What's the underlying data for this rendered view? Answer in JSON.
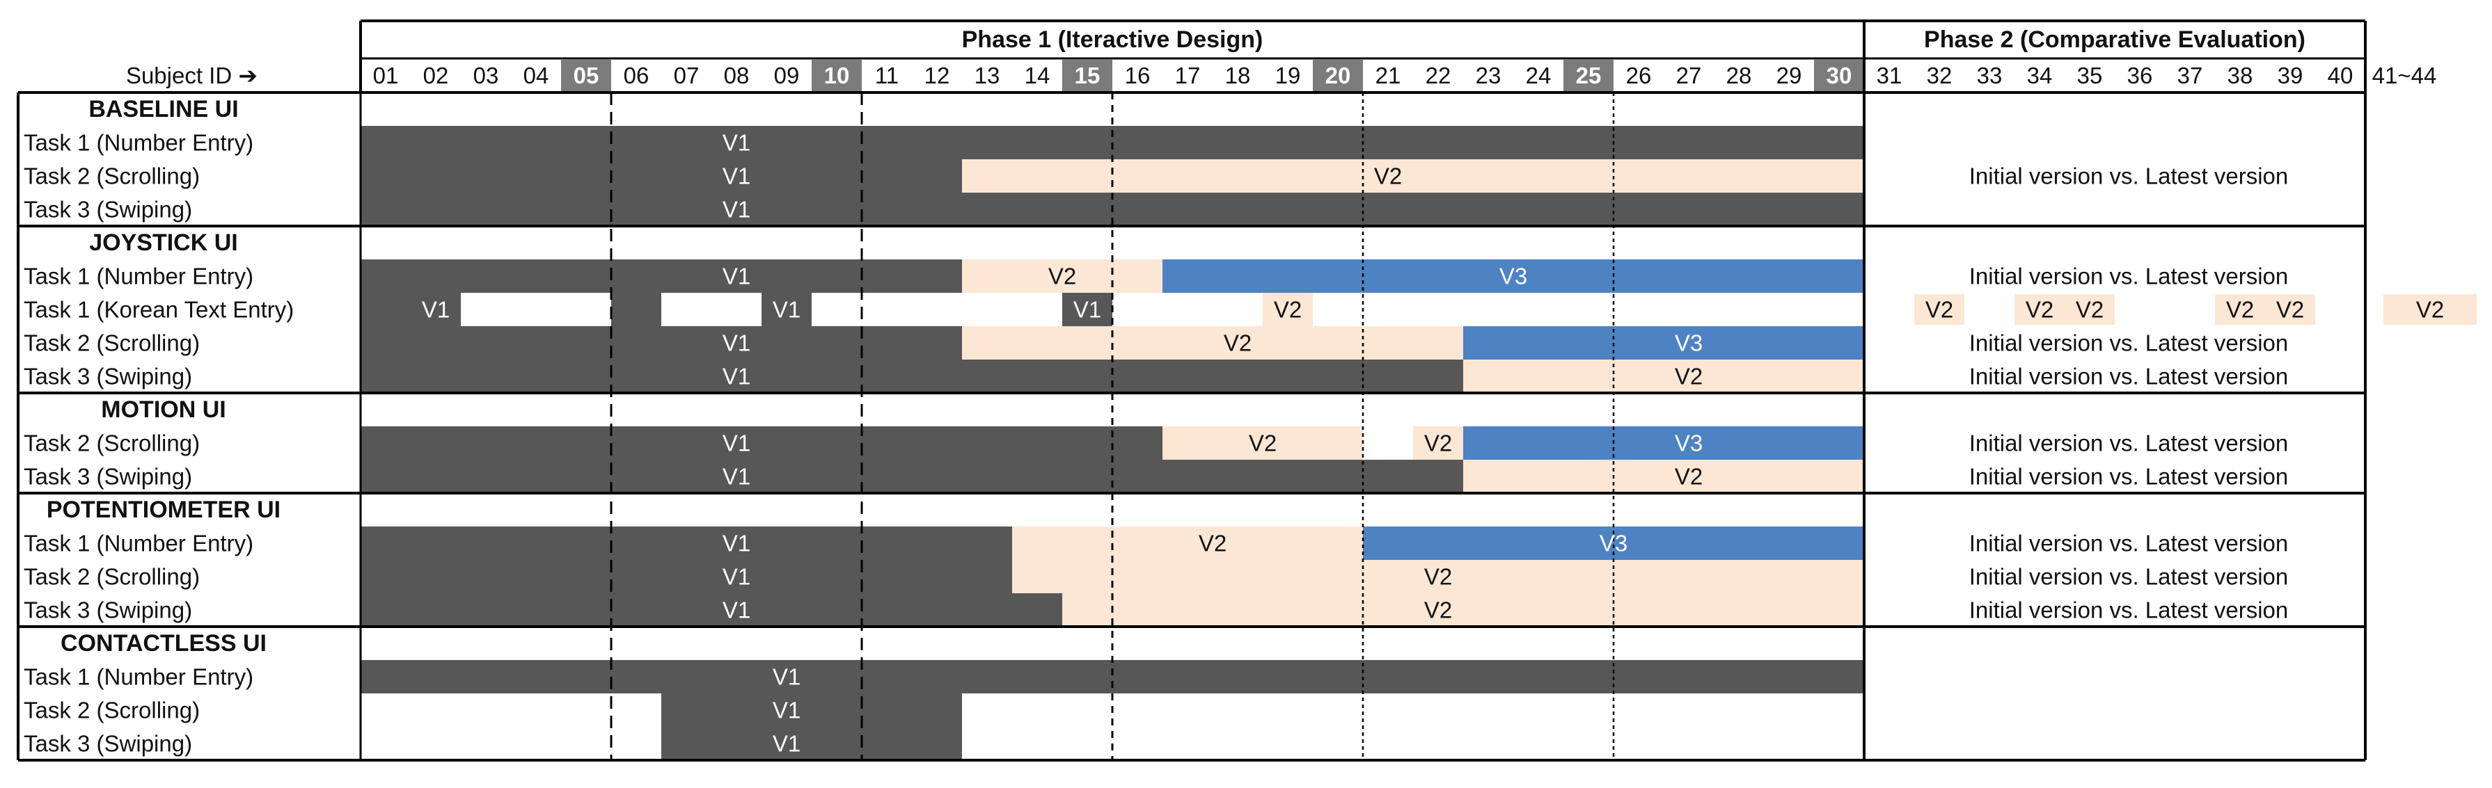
{
  "header": {
    "subject_id_label": "Subject ID ➔",
    "phase1_title": "Phase 1 (Iteractive Design)",
    "phase2_title": "Phase 2 (Comparative Evaluation)",
    "extra_column_label": "41~44",
    "subject_ids": [
      "01",
      "02",
      "03",
      "04",
      "05",
      "06",
      "07",
      "08",
      "09",
      "10",
      "11",
      "12",
      "13",
      "14",
      "15",
      "16",
      "17",
      "18",
      "19",
      "20",
      "21",
      "22",
      "23",
      "24",
      "25",
      "26",
      "27",
      "28",
      "29",
      "30",
      "31",
      "32",
      "33",
      "34",
      "35",
      "36",
      "37",
      "38",
      "39",
      "40"
    ],
    "highlighted_ids": [
      "05",
      "10",
      "15",
      "20",
      "25",
      "30"
    ]
  },
  "colors": {
    "v1": "#575757",
    "v2": "#fbe7d4",
    "v3": "#4d82c3",
    "header_highlight": "#7b7b7b",
    "border": "#000000"
  },
  "phase2_comparison_text": "Initial version vs. Latest version",
  "groups": [
    {
      "title": "BASELINE UI",
      "tasks": [
        {
          "label": "Task 1 (Number Entry)",
          "segments": [
            {
              "v": "V1",
              "from": 1,
              "to": 30,
              "label_at": 8
            }
          ],
          "phase2": "none"
        },
        {
          "label": "Task 2 (Scrolling)",
          "segments": [
            {
              "v": "V1",
              "from": 1,
              "to": 12,
              "label_at": 8
            },
            {
              "v": "V2",
              "from": 13,
              "to": 30,
              "label_at": 21
            }
          ],
          "phase2": "compare"
        },
        {
          "label": "Task 3 (Swiping)",
          "segments": [
            {
              "v": "V1",
              "from": 1,
              "to": 30,
              "label_at": 8
            }
          ],
          "phase2": "none"
        }
      ]
    },
    {
      "title": "JOYSTICK UI",
      "tasks": [
        {
          "label": "Task 1 (Number Entry)",
          "segments": [
            {
              "v": "V1",
              "from": 1,
              "to": 12,
              "label_at": 8
            },
            {
              "v": "V2",
              "from": 13,
              "to": 16,
              "label_at": 14.5
            },
            {
              "v": "V3",
              "from": 17,
              "to": 30,
              "label_at": 23.5
            }
          ],
          "phase2": "compare"
        },
        {
          "label": "Task 1 (Korean Text Entry)",
          "segments": [
            {
              "v": "V1",
              "from": 1,
              "to": 2,
              "label_at": 2
            },
            {
              "v": "V1",
              "from": 6,
              "to": 6,
              "label_at": 7
            },
            {
              "v": "V1",
              "from": 9,
              "to": 9,
              "label_at": 9
            },
            {
              "v": "V1",
              "from": 15,
              "to": 15,
              "label_at": 15
            },
            {
              "v": "V2",
              "from": 19,
              "to": 19,
              "label_at": 19
            }
          ],
          "phase2": "korean"
        },
        {
          "label": "Task 2 (Scrolling)",
          "segments": [
            {
              "v": "V1",
              "from": 1,
              "to": 12,
              "label_at": 8
            },
            {
              "v": "V2",
              "from": 13,
              "to": 22,
              "label_at": 18
            },
            {
              "v": "V3",
              "from": 23,
              "to": 30,
              "label_at": 27
            }
          ],
          "phase2": "compare"
        },
        {
          "label": "Task 3 (Swiping)",
          "segments": [
            {
              "v": "V1",
              "from": 1,
              "to": 22,
              "label_at": 8
            },
            {
              "v": "V2",
              "from": 23,
              "to": 30,
              "label_at": 27
            }
          ],
          "phase2": "compare"
        }
      ]
    },
    {
      "title": "MOTION UI",
      "tasks": [
        {
          "label": "Task 2 (Scrolling)",
          "segments": [
            {
              "v": "V1",
              "from": 1,
              "to": 16,
              "label_at": 8
            },
            {
              "v": "V2",
              "from": 17,
              "to": 20,
              "label_at": 18.5
            },
            {
              "v": "V2",
              "from": 22,
              "to": 22,
              "label_at": 22
            },
            {
              "v": "V3",
              "from": 23,
              "to": 30,
              "label_at": 27
            }
          ],
          "phase2": "compare"
        },
        {
          "label": "Task 3 (Swiping)",
          "segments": [
            {
              "v": "V1",
              "from": 1,
              "to": 22,
              "label_at": 8
            },
            {
              "v": "V2",
              "from": 23,
              "to": 30,
              "label_at": 27
            }
          ],
          "phase2": "compare"
        }
      ]
    },
    {
      "title": "POTENTIOMETER UI",
      "tasks": [
        {
          "label": "Task 1 (Number Entry)",
          "segments": [
            {
              "v": "V1",
              "from": 1,
              "to": 13,
              "label_at": 8
            },
            {
              "v": "V2",
              "from": 14,
              "to": 20,
              "label_at": 17.5
            },
            {
              "v": "V3",
              "from": 21,
              "to": 30,
              "label_at": 25.5
            }
          ],
          "phase2": "compare"
        },
        {
          "label": "Task 2 (Scrolling)",
          "segments": [
            {
              "v": "V1",
              "from": 1,
              "to": 13,
              "label_at": 8
            },
            {
              "v": "V2",
              "from": 14,
              "to": 30,
              "label_at": 22
            }
          ],
          "phase2": "compare"
        },
        {
          "label": "Task 3 (Swiping)",
          "segments": [
            {
              "v": "V1",
              "from": 1,
              "to": 14,
              "label_at": 8
            },
            {
              "v": "V2",
              "from": 15,
              "to": 30,
              "label_at": 22
            }
          ],
          "phase2": "compare"
        }
      ]
    },
    {
      "title": "CONTACTLESS UI",
      "tasks": [
        {
          "label": "Task 1 (Number Entry)",
          "segments": [
            {
              "v": "V1",
              "from": 1,
              "to": 30,
              "label_at": 9
            }
          ],
          "phase2": "none"
        },
        {
          "label": "Task 2 (Scrolling)",
          "segments": [
            {
              "v": "V1",
              "from": 7,
              "to": 12,
              "label_at": 9
            }
          ],
          "phase2": "none"
        },
        {
          "label": "Task 3 (Swiping)",
          "segments": [
            {
              "v": "V1",
              "from": 7,
              "to": 12,
              "label_at": 9
            }
          ],
          "phase2": "none"
        }
      ]
    }
  ],
  "korean_phase2": [
    {
      "v": "V2",
      "from": 32,
      "to": 32
    },
    {
      "v": "V2",
      "from": 34,
      "to": 34
    },
    {
      "v": "V2",
      "from": 35,
      "to": 35
    },
    {
      "v": "V2",
      "from": 38,
      "to": 38
    },
    {
      "v": "V2",
      "from": 39,
      "to": 39
    },
    {
      "v": "V2",
      "from": "41~44",
      "to": "41~44"
    }
  ]
}
